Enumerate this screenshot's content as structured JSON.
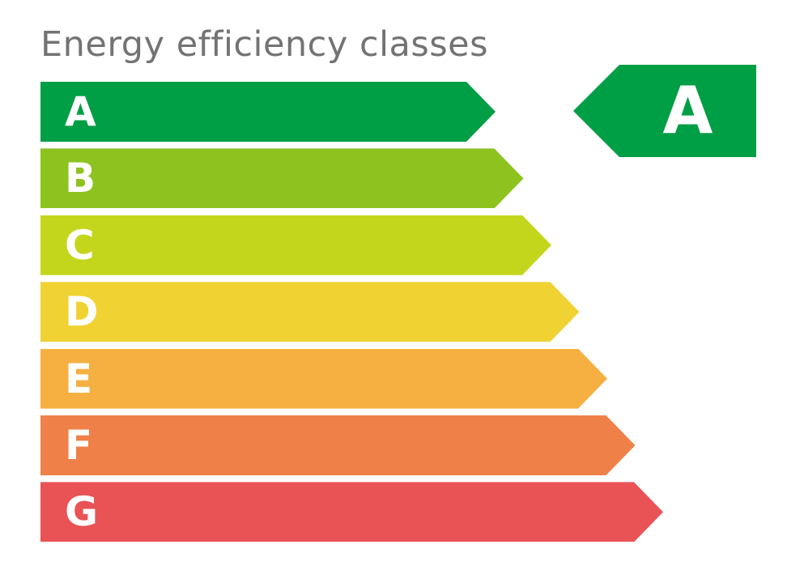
{
  "title": "Energy efficiency classes",
  "classes": [
    {
      "label": "A",
      "color": "#009e45"
    },
    {
      "label": "B",
      "color": "#8dc21f"
    },
    {
      "label": "C",
      "color": "#c4d61c"
    },
    {
      "label": "D",
      "color": "#f0d333"
    },
    {
      "label": "E",
      "color": "#f5b041"
    },
    {
      "label": "F",
      "color": "#ef8148"
    },
    {
      "label": "G",
      "color": "#e95356"
    }
  ],
  "rating": {
    "label": "A",
    "color": "#009e45"
  }
}
